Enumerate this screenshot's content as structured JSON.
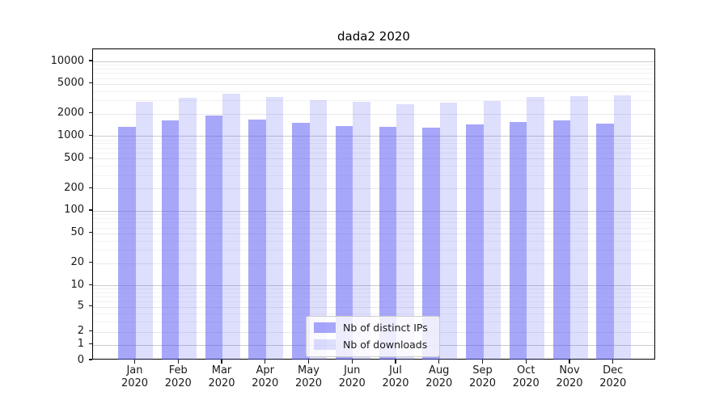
{
  "chart_data": {
    "type": "bar",
    "title": "dada2 2020",
    "categories": [
      "Jan",
      "Feb",
      "Mar",
      "Apr",
      "May",
      "Jun",
      "Jul",
      "Aug",
      "Sep",
      "Oct",
      "Nov",
      "Dec"
    ],
    "year_label": "2020",
    "series": [
      {
        "name": "Nb of distinct IPs",
        "color": "rgba(80,80,245,0.50)",
        "values": [
          1330,
          1620,
          1880,
          1680,
          1520,
          1360,
          1320,
          1300,
          1430,
          1550,
          1620,
          1460
        ]
      },
      {
        "name": "Nb of downloads",
        "color": "rgba(80,80,245,0.19)",
        "values": [
          2880,
          3260,
          3700,
          3340,
          3000,
          2880,
          2670,
          2810,
          2930,
          3320,
          3400,
          3490
        ]
      }
    ],
    "xlabel": "",
    "ylabel": "",
    "yscale": "asinh",
    "ylim": [
      0,
      14500
    ],
    "y_ticks": [
      0,
      1,
      2,
      5,
      10,
      20,
      50,
      100,
      200,
      500,
      1000,
      2000,
      5000,
      10000
    ],
    "y_major_ticks": [
      1,
      10,
      100,
      1000,
      10000
    ],
    "y_minor_ticks": [
      3,
      4,
      6,
      7,
      8,
      9,
      30,
      40,
      60,
      70,
      80,
      90,
      300,
      400,
      600,
      700,
      800,
      900,
      3000,
      4000,
      6000,
      7000,
      8000,
      9000
    ],
    "grid": true,
    "legend_position": "lower center"
  },
  "colors": {
    "grid_major": "#cccccc",
    "grid_tick": "#e9e9e9",
    "grid_minor": "#f2f2f2",
    "spine": "#000000",
    "text": "#1a1a1a"
  }
}
